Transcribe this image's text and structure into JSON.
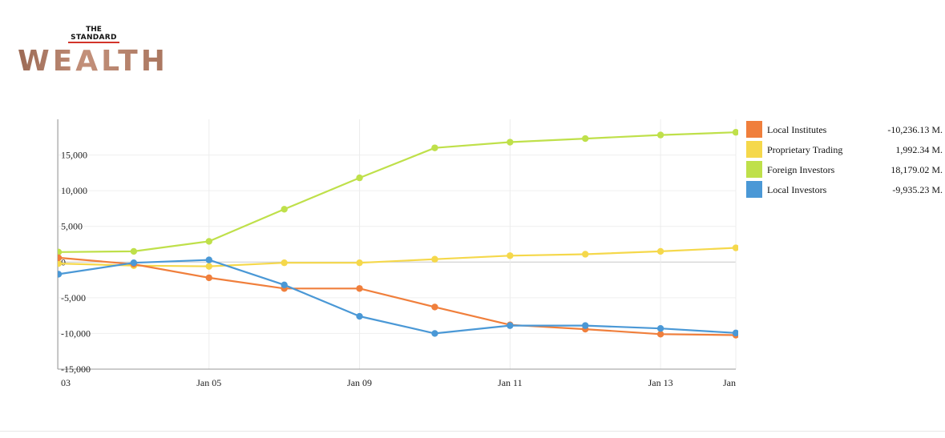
{
  "brand": {
    "the": "THE",
    "standard": "STANDARD",
    "wealth": "WEALTH"
  },
  "legend": [
    {
      "name": "Local Institutes",
      "value": "-10,236.13 M.",
      "color": "#f07f3c"
    },
    {
      "name": "Proprietary Trading",
      "value": "1,992.34 M.",
      "color": "#f5d84b"
    },
    {
      "name": "Foreign Investors",
      "value": "18,179.02 M.",
      "color": "#bfe04a"
    },
    {
      "name": "Local Investors",
      "value": "-9,935.23 M.",
      "color": "#4a98d6"
    }
  ],
  "chart_data": {
    "type": "line",
    "x": [
      0,
      1,
      2,
      3,
      4,
      5,
      6,
      7,
      8,
      9
    ],
    "x_tick_labels": [
      {
        "x": 0,
        "label": "03"
      },
      {
        "x": 2,
        "label": "Jan 05"
      },
      {
        "x": 4,
        "label": "Jan 09"
      },
      {
        "x": 6,
        "label": "Jan 11"
      },
      {
        "x": 8,
        "label": "Jan 13"
      },
      {
        "x": 9,
        "label": "Jan"
      }
    ],
    "y_ticks": [
      {
        "value": 15000,
        "label": "15,000"
      },
      {
        "value": 10000,
        "label": "10,000"
      },
      {
        "value": 5000,
        "label": "5,000"
      },
      {
        "value": 0,
        "label": "0"
      },
      {
        "value": -5000,
        "label": "-5,000"
      },
      {
        "value": -10000,
        "label": "-10,000"
      },
      {
        "value": -15000,
        "label": "-15,000"
      }
    ],
    "ylim": [
      -15000,
      20000
    ],
    "grid": true,
    "series": [
      {
        "name": "Foreign Investors",
        "color": "#bfe04a",
        "values": [
          1400,
          1500,
          2900,
          7400,
          11800,
          16000,
          16800,
          17300,
          17800,
          18179
        ]
      },
      {
        "name": "Proprietary Trading",
        "color": "#f5d84b",
        "values": [
          -200,
          -500,
          -600,
          -100,
          -100,
          400,
          900,
          1100,
          1500,
          1992
        ]
      },
      {
        "name": "Local Institutes",
        "color": "#f07f3c",
        "values": [
          600,
          -300,
          -2200,
          -3700,
          -3700,
          -6300,
          -8800,
          -9400,
          -10100,
          -10236
        ]
      },
      {
        "name": "Local Investors",
        "color": "#4a98d6",
        "values": [
          -1700,
          -100,
          300,
          -3200,
          -7600,
          -10000,
          -8900,
          -8900,
          -9300,
          -9935
        ]
      }
    ]
  }
}
